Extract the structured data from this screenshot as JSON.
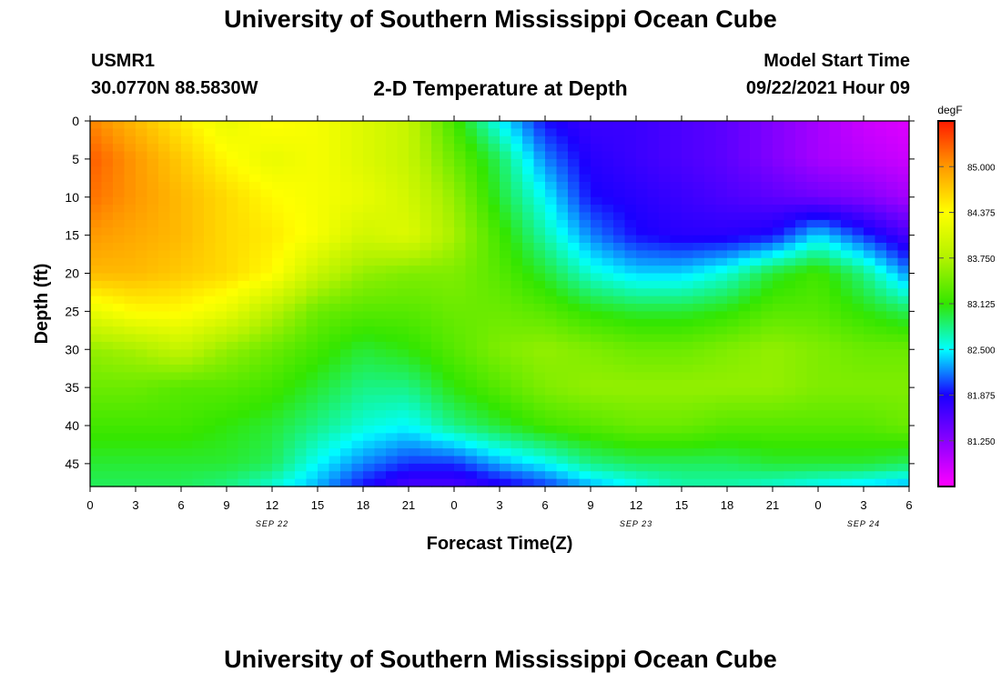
{
  "page": {
    "title_top": "University of Southern Mississippi Ocean Cube",
    "title_bottom": "University of Southern Mississippi Ocean Cube",
    "station_id": "USMR1",
    "station_coords": "30.0770N  88.5830W",
    "plot_title": "2-D Temperature at Depth",
    "model_label": "Model Start Time",
    "model_time": "09/22/2021 Hour 09"
  },
  "colors": {
    "background": "#ffffff",
    "frame": "#000000"
  },
  "chart_data": {
    "type": "heatmap",
    "title": "2-D Temperature at Depth",
    "xlabel": "Forecast Time(Z)",
    "ylabel": "Depth (ft)",
    "x_hours_range": [
      0,
      54
    ],
    "x_tick_labels": [
      "0",
      "3",
      "6",
      "9",
      "12",
      "15",
      "18",
      "21",
      "0",
      "3",
      "6",
      "9",
      "12",
      "15",
      "18",
      "21",
      "0",
      "3",
      "6"
    ],
    "date_labels": [
      {
        "label": "SEP 22",
        "hour": 12
      },
      {
        "label": "SEP 23",
        "hour": 36
      },
      {
        "label": "SEP 24",
        "hour": 51
      }
    ],
    "y_range": [
      0,
      48
    ],
    "y_ticks": [
      0,
      5,
      10,
      15,
      20,
      25,
      30,
      35,
      40,
      45
    ],
    "colorbar": {
      "unit": "degF",
      "range": [
        80.625,
        85.625
      ],
      "tick_values": [
        85.0,
        84.375,
        83.75,
        83.125,
        82.5,
        81.875,
        81.25
      ],
      "tick_labels": [
        "85.000",
        "84.375",
        "83.750",
        "83.125",
        "82.500",
        "81.875",
        "81.250"
      ],
      "colors_low_to_high": [
        "#ff00ff",
        "#8a00ff",
        "#1a00ff",
        "#00ffff",
        "#33e600",
        "#b2f200",
        "#ffff00",
        "#ff9900",
        "#ff1a00"
      ]
    },
    "grid_hours": [
      0,
      3,
      6,
      9,
      12,
      15,
      18,
      21,
      24,
      27,
      30,
      33,
      36,
      39,
      42,
      45,
      48,
      51,
      54
    ],
    "grid_depths": [
      0,
      5,
      10,
      15,
      20,
      25,
      30,
      35,
      40,
      45,
      48
    ],
    "values": [
      [
        85.1,
        84.8,
        84.5,
        84.2,
        84.4,
        84.3,
        84.1,
        83.9,
        83.2,
        82.5,
        81.9,
        81.7,
        81.7,
        81.6,
        81.5,
        81.3,
        81.1,
        80.9,
        80.8
      ],
      [
        85.3,
        85.0,
        84.7,
        84.4,
        84.2,
        84.3,
        84.1,
        83.9,
        83.4,
        82.9,
        82.2,
        81.8,
        81.7,
        81.6,
        81.5,
        81.3,
        81.1,
        81.0,
        80.9
      ],
      [
        85.2,
        85.0,
        84.8,
        84.6,
        84.4,
        84.3,
        84.2,
        84.0,
        83.6,
        83.0,
        82.5,
        81.9,
        81.8,
        81.7,
        81.6,
        81.5,
        81.4,
        81.3,
        81.1
      ],
      [
        85.0,
        84.9,
        84.8,
        84.6,
        84.5,
        84.3,
        84.0,
        84.1,
        83.7,
        83.2,
        82.7,
        82.2,
        81.9,
        81.8,
        81.8,
        81.9,
        82.4,
        82.0,
        81.6
      ],
      [
        84.8,
        84.8,
        84.7,
        84.6,
        84.4,
        83.9,
        83.6,
        83.5,
        83.5,
        83.3,
        83.0,
        82.6,
        82.4,
        82.4,
        82.6,
        83.0,
        83.2,
        82.8,
        82.2
      ],
      [
        84.2,
        84.4,
        84.4,
        84.2,
        83.8,
        83.4,
        83.3,
        83.3,
        83.4,
        83.4,
        83.3,
        83.1,
        83.0,
        83.0,
        83.1,
        83.3,
        83.3,
        83.1,
        82.9
      ],
      [
        83.6,
        83.7,
        83.9,
        83.6,
        83.4,
        83.2,
        83.0,
        83.1,
        83.3,
        83.5,
        83.6,
        83.5,
        83.4,
        83.4,
        83.5,
        83.6,
        83.5,
        83.4,
        83.4
      ],
      [
        83.4,
        83.4,
        83.3,
        83.3,
        83.2,
        83.0,
        82.8,
        82.8,
        83.1,
        83.3,
        83.5,
        83.6,
        83.6,
        83.6,
        83.6,
        83.6,
        83.5,
        83.5,
        83.5
      ],
      [
        83.2,
        83.2,
        83.2,
        83.1,
        83.0,
        82.8,
        82.6,
        82.5,
        82.8,
        83.0,
        83.2,
        83.3,
        83.4,
        83.4,
        83.3,
        83.3,
        83.3,
        83.3,
        83.4
      ],
      [
        83.0,
        83.0,
        83.0,
        83.0,
        82.9,
        82.5,
        82.2,
        82.0,
        82.0,
        82.3,
        82.5,
        82.8,
        82.9,
        82.9,
        82.9,
        83.0,
        83.0,
        83.0,
        82.9
      ],
      [
        82.9,
        82.9,
        82.9,
        82.8,
        82.6,
        82.3,
        81.9,
        81.6,
        81.6,
        81.8,
        82.0,
        82.3,
        82.5,
        82.7,
        82.7,
        82.6,
        82.5,
        82.4,
        82.3
      ]
    ]
  }
}
